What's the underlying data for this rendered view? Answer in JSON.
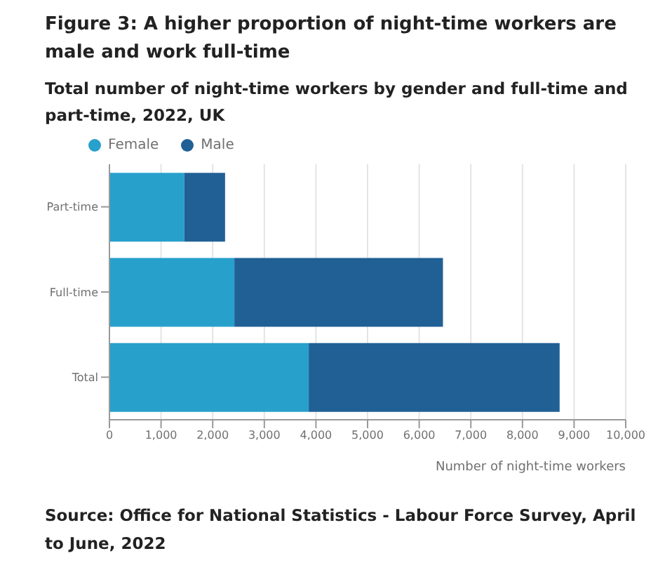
{
  "chart_data": {
    "type": "bar",
    "orientation": "horizontal",
    "stacked": true,
    "title": "Figure 3: A higher proportion of night-time workers are male and work full-time",
    "subtitle": "Total number of night-time workers by gender and full-time and part-time, 2022, UK",
    "xlabel": "Number of night-time workers",
    "categories": [
      "Part-time",
      "Full-time",
      "Total"
    ],
    "series": [
      {
        "name": "Female",
        "color": "#27a0cc",
        "values": [
          1450,
          2420,
          3860
        ]
      },
      {
        "name": "Male",
        "color": "#206095",
        "values": [
          790,
          4040,
          4860
        ]
      }
    ],
    "xlim": [
      0,
      10000
    ],
    "xticks": [
      0,
      {
        "value": 1000,
        "label": "1,000"
      },
      {
        "value": 2000,
        "label": "2,000"
      },
      {
        "value": 3000,
        "label": "3,000"
      },
      {
        "value": 4000,
        "label": "4,000"
      },
      {
        "value": 5000,
        "label": "5,000"
      },
      {
        "value": 6000,
        "label": "6,000"
      },
      {
        "value": 7000,
        "label": "7,000"
      },
      {
        "value": 8000,
        "label": "8,000"
      },
      {
        "value": 9000,
        "label": "9,000"
      },
      {
        "value": 10000,
        "label": "10,000"
      }
    ],
    "grid": "x",
    "legend": "top left",
    "annotations": [
      "Source: Office for National Statistics - Labour Force Survey, April to June, 2022"
    ]
  }
}
